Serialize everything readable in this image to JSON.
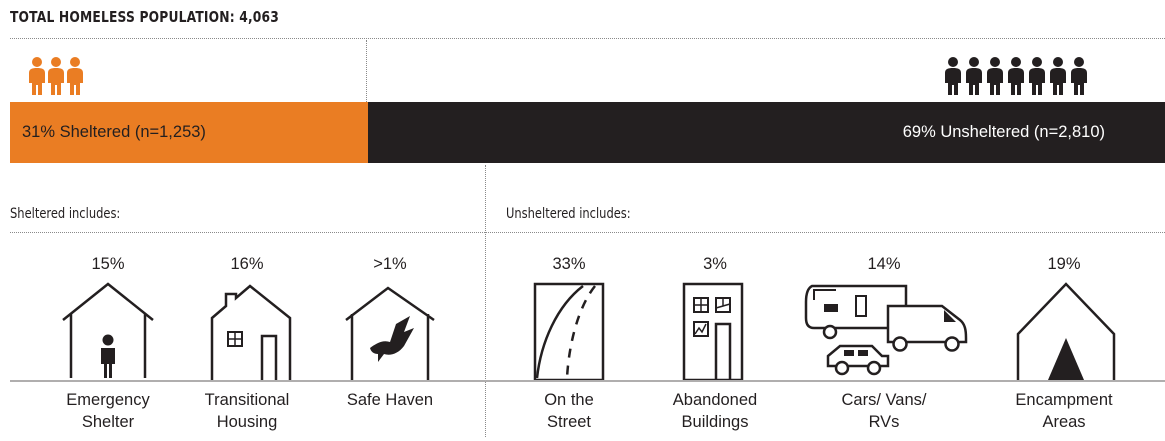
{
  "title": "TOTAL HOMELESS POPULATION: 4,063",
  "bar": {
    "sheltered_label": "31% Sheltered (n=1,253)",
    "unsheltered_label": "69% Unsheltered (n=2,810)"
  },
  "sheltered_heading": "Sheltered includes:",
  "unsheltered_heading": "Unsheltered includes:",
  "colors": {
    "sheltered": "#ea7d23",
    "unsheltered": "#231f20"
  },
  "chart_data": [
    {
      "type": "bar",
      "orientation": "horizontal-stacked",
      "title": "TOTAL HOMELESS POPULATION: 4,063",
      "total": 4063,
      "series": [
        {
          "name": "Sheltered",
          "percent": 31,
          "n": 1253
        },
        {
          "name": "Unsheltered",
          "percent": 69,
          "n": 2810
        }
      ]
    },
    {
      "type": "table",
      "categories": [
        {
          "group": "Sheltered",
          "pct_label": "15%",
          "label1": "Emergency",
          "label2": "Shelter",
          "icon": "house-with-person-icon"
        },
        {
          "group": "Sheltered",
          "pct_label": "16%",
          "label1": "Transitional",
          "label2": "Housing",
          "icon": "house-with-window-door-icon"
        },
        {
          "group": "Sheltered",
          "pct_label": ">1%",
          "label1": "Safe Haven",
          "label2": "",
          "icon": "house-with-dove-icon"
        },
        {
          "group": "Unsheltered",
          "pct_label": "33%",
          "label1": "On the",
          "label2": "Street",
          "icon": "road-icon"
        },
        {
          "group": "Unsheltered",
          "pct_label": "3%",
          "label1": "Abandoned",
          "label2": "Buildings",
          "icon": "abandoned-building-icon"
        },
        {
          "group": "Unsheltered",
          "pct_label": "14%",
          "label1": "Cars/ Vans/",
          "label2": "RVs",
          "icon": "vehicles-icon"
        },
        {
          "group": "Unsheltered",
          "pct_label": "19%",
          "label1": "Encampment",
          "label2": "Areas",
          "icon": "tent-icon"
        }
      ]
    }
  ]
}
